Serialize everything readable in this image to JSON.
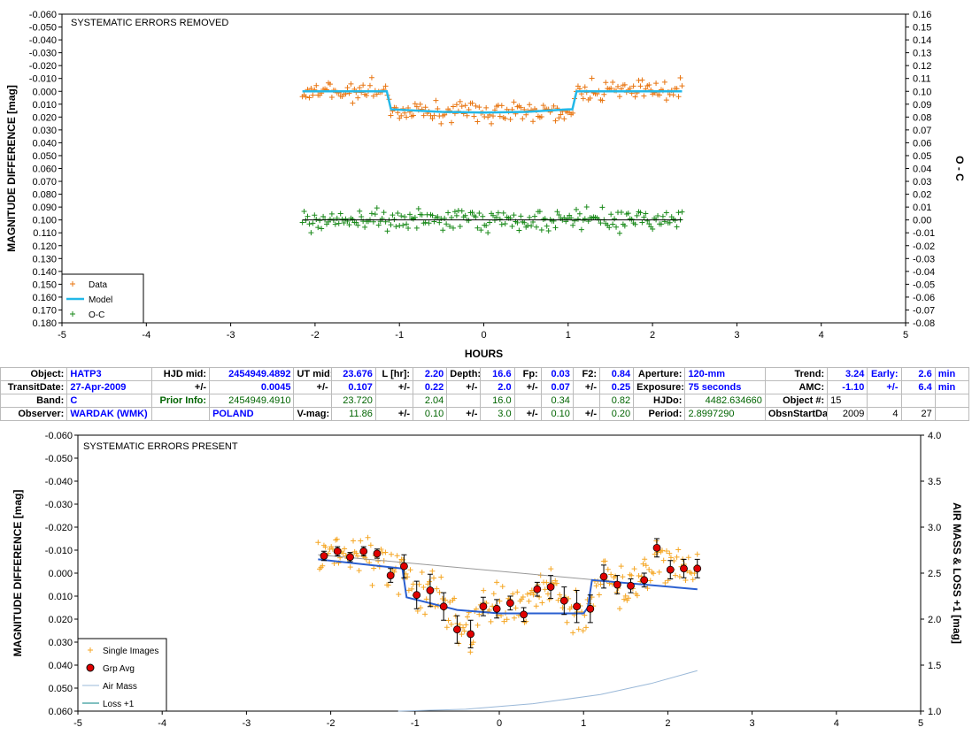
{
  "chart_data": [
    {
      "type": "scatter",
      "title": "SYSTEMATIC ERRORS REMOVED",
      "xlabel": "HOURS",
      "ylabel": "MAGNITUDE DIFFERENCE [mag]",
      "y2label": "O - C",
      "xlim": [
        -5,
        5
      ],
      "ylim": [
        -0.06,
        0.18
      ],
      "y_inverted": true,
      "y2lim": [
        0.16,
        -0.08
      ],
      "xticks": [
        "-5",
        "-4",
        "-3",
        "-2",
        "-1",
        "0",
        "1",
        "2",
        "3",
        "4",
        "5"
      ],
      "yticks": [
        "-0.060",
        "-0.050",
        "-0.040",
        "-0.030",
        "-0.020",
        "-0.010",
        "0.000",
        "0.010",
        "0.020",
        "0.030",
        "0.040",
        "0.050",
        "0.060",
        "0.070",
        "0.080",
        "0.090",
        "0.100",
        "0.110",
        "0.120",
        "0.130",
        "0.140",
        "0.150",
        "0.160",
        "0.170",
        "0.180"
      ],
      "y2ticks": [
        "0.16",
        "0.15",
        "0.14",
        "0.13",
        "0.12",
        "0.11",
        "0.10",
        "0.09",
        "0.08",
        "0.07",
        "0.06",
        "0.05",
        "0.04",
        "0.03",
        "0.02",
        "0.01",
        "0.00",
        "-0.01",
        "-0.02",
        "-0.03",
        "-0.04",
        "-0.05",
        "-0.06",
        "-0.07",
        "-0.08"
      ],
      "legend": {
        "position": "bottom-left",
        "entries": [
          "Data",
          "Model",
          "O-C"
        ]
      },
      "series": [
        {
          "name": "Data",
          "marker": "+",
          "color": "#e87511",
          "x_range": [
            -2.15,
            2.35
          ],
          "n_points": 220,
          "description_values": {
            "oot_mean": 0.0,
            "in_transit_mean": 0.016,
            "scatter": 0.008
          }
        },
        {
          "name": "Model",
          "color": "#22b8e8",
          "x": [
            -2.15,
            -1.15,
            -1.1,
            -0.5,
            0.0,
            0.5,
            1.0,
            1.05,
            1.1,
            2.35
          ],
          "y": [
            0.0,
            0.0,
            0.014,
            0.016,
            0.0165,
            0.016,
            0.014,
            0.014,
            0.0,
            0.0
          ]
        },
        {
          "name": "O-C",
          "marker": "+",
          "color": "#1a8a1a",
          "x_range": [
            -2.15,
            2.35
          ],
          "n_points": 220,
          "offset": 0.1,
          "description_values": {
            "mean": 0.0,
            "scatter": 0.008
          }
        }
      ],
      "reference_line": {
        "y": 0.1,
        "x": [
          -2.15,
          2.35
        ],
        "color": "#000000"
      }
    },
    {
      "type": "scatter",
      "title": "SYSTEMATIC ERRORS PRESENT",
      "xlabel": "",
      "ylabel": "MAGNITUDE DIFFERENCE [mag]",
      "y2label": "AIR MASS & LOSS +1 [mag]",
      "xlim": [
        -5,
        5
      ],
      "ylim": [
        -0.06,
        0.06
      ],
      "y_inverted": true,
      "y2lim": [
        1.0,
        4.0
      ],
      "xticks": [
        "-5",
        "-4",
        "-3",
        "-2",
        "-1",
        "0",
        "1",
        "2",
        "3",
        "4",
        "5"
      ],
      "yticks": [
        "-0.060",
        "-0.050",
        "-0.040",
        "-0.030",
        "-0.020",
        "-0.010",
        "0.000",
        "0.010",
        "0.020",
        "0.030",
        "0.040",
        "0.050",
        "0.060"
      ],
      "y2ticks": [
        "4.0",
        "3.5",
        "3.0",
        "2.5",
        "2.0",
        "1.5",
        "1.0"
      ],
      "legend": {
        "position": "bottom-left",
        "entries": [
          "Single Images",
          "Grp Avg",
          "Air Mass",
          "Loss +1"
        ]
      },
      "series": [
        {
          "name": "Single Images",
          "marker": "+",
          "color": "#f5a623",
          "x_range": [
            -2.15,
            2.35
          ],
          "n_points": 260
        },
        {
          "name": "Grp Avg",
          "marker": "circle",
          "color": "#e00000",
          "x": [
            -2.08,
            -1.92,
            -1.77,
            -1.61,
            -1.45,
            -1.29,
            -1.13,
            -0.98,
            -0.82,
            -0.66,
            -0.5,
            -0.34,
            -0.19,
            -0.03,
            0.13,
            0.29,
            0.45,
            0.61,
            0.77,
            0.92,
            1.08,
            1.24,
            1.4,
            1.56,
            1.72,
            1.87,
            2.03,
            2.19,
            2.35
          ],
          "y": [
            -0.0075,
            -0.0095,
            -0.007,
            -0.0095,
            -0.0085,
            0.001,
            -0.003,
            0.0095,
            0.0075,
            0.0145,
            0.0245,
            0.0265,
            0.0145,
            0.0155,
            0.013,
            0.018,
            0.007,
            0.006,
            0.012,
            0.0145,
            0.0155,
            0.0015,
            0.005,
            0.0055,
            0.003,
            -0.011,
            -0.0015,
            -0.002,
            -0.002
          ],
          "err": [
            0.002,
            0.002,
            0.002,
            0.002,
            0.002,
            0.003,
            0.005,
            0.006,
            0.007,
            0.006,
            0.006,
            0.006,
            0.004,
            0.004,
            0.003,
            0.003,
            0.003,
            0.005,
            0.006,
            0.007,
            0.006,
            0.005,
            0.004,
            0.003,
            0.003,
            0.004,
            0.004,
            0.004,
            0.004
          ]
        },
        {
          "name": "Model",
          "color": "#2a5fd0",
          "x": [
            -2.15,
            -1.15,
            -1.1,
            -0.5,
            0.0,
            0.5,
            1.0,
            1.05,
            1.1,
            2.35
          ],
          "y": [
            -0.006,
            -0.002,
            0.0105,
            0.016,
            0.0175,
            0.0175,
            0.0175,
            0.015,
            0.003,
            0.007
          ]
        },
        {
          "name": "Air Mass",
          "color": "#9ab8d8",
          "axis": "y2",
          "x": [
            -1.2,
            -0.4,
            0.4,
            1.2,
            1.8,
            2.35
          ],
          "y": [
            1.0,
            1.02,
            1.08,
            1.18,
            1.3,
            1.44
          ]
        },
        {
          "name": "Loss +1",
          "color": "#008080",
          "axis": "y2",
          "x": [],
          "y": []
        },
        {
          "name": "Trend",
          "color": "#999999",
          "x": [
            -2.15,
            2.35
          ],
          "y": [
            -0.008,
            0.007
          ]
        }
      ]
    }
  ],
  "info_table": {
    "rows": [
      [
        "Object:",
        "HATP3",
        "HJD mid:",
        "2454949.4892",
        "UT mid:",
        "23.676",
        "L [hr]:",
        "2.20",
        "Depth:",
        "16.6",
        "Fp:",
        "0.03",
        "F2:",
        "0.84",
        "Aperture:",
        "120-mm",
        "Trend:",
        "3.24",
        "Early:",
        "2.6",
        "min"
      ],
      [
        "TransitDate:",
        "27-Apr-2009",
        "+/-",
        "0.0045",
        "+/-",
        "0.107",
        "+/-",
        "0.22",
        "+/-",
        "2.0",
        "+/-",
        "0.07",
        "+/-",
        "0.25",
        "Exposure:",
        "75 seconds",
        "AMC:",
        "-1.10",
        "+/-",
        "6.4",
        "min"
      ],
      [
        "Band:",
        "C",
        "Prior Info:",
        "2454949.4910",
        "",
        "23.720",
        "",
        "2.04",
        "",
        "16.0",
        "",
        "0.34",
        "",
        "0.82",
        "HJDo:",
        "4482.634660",
        "Object #:",
        "15",
        "",
        "",
        ""
      ],
      [
        "Observer:",
        "WARDAK (WMK)",
        "",
        "POLAND",
        "V-mag:",
        "11.86",
        "+/-",
        "0.10",
        "+/-",
        "3.0",
        "+/-",
        "0.10",
        "+/-",
        "0.20",
        "Period:",
        "2.8997290",
        "ObsnStartDate:",
        "2009",
        "4",
        "27",
        ""
      ]
    ]
  }
}
